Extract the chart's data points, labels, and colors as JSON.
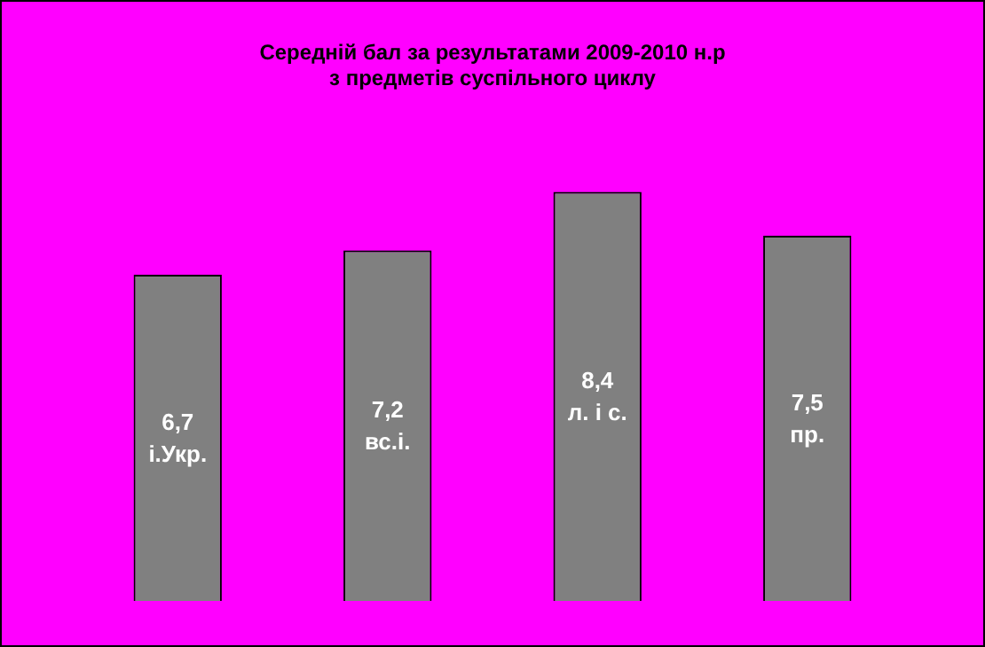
{
  "chart_data": {
    "type": "bar",
    "title": "Середній бал за результатами 2009-2010 н.р\nз предметів суспільного циклу",
    "categories": [
      "і.Укр.",
      "вс.і.",
      "л. і с.",
      "пр."
    ],
    "values": [
      6.7,
      7.2,
      8.4,
      7.5
    ],
    "value_labels": [
      "6,7",
      "7,2",
      "8,4",
      "7,5"
    ],
    "color": "#808080"
  }
}
